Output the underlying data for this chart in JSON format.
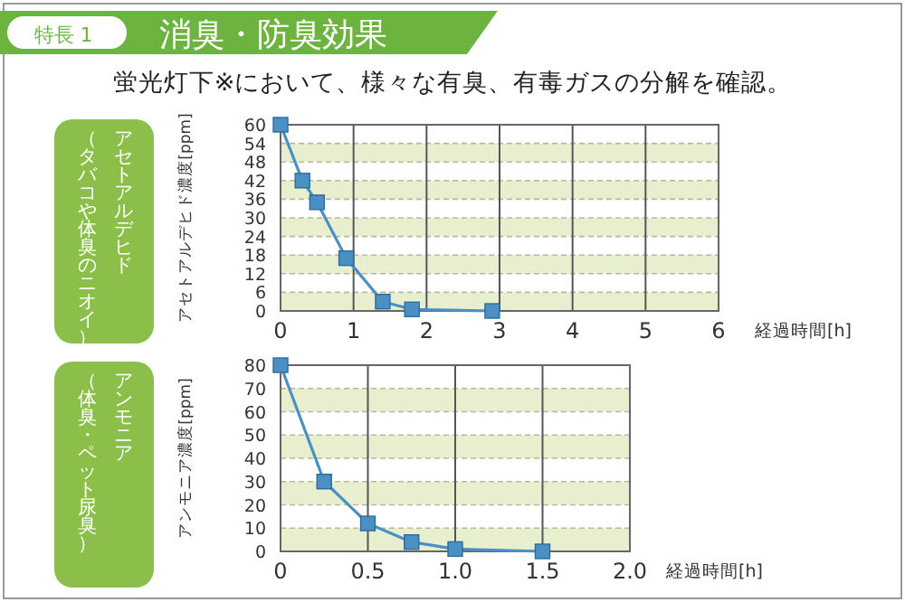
{
  "chart_data": [
    {
      "type": "line",
      "title": "消臭・防臭効果",
      "subtitle": "蛍光灯下※において、様々な有臭、有毒ガスの分解を確認。",
      "annotations": [
        "特長 1",
        "アセトアルデヒド",
        "（タバコや体臭のニオイ）"
      ],
      "xlabel": "経過時間[h]",
      "ylabel": "アセトアルデヒド濃度[ppm]",
      "series": [
        {
          "color": "#4a90c4",
          "x": [
            0,
            0.3,
            0.5,
            0.9,
            1.4,
            1.8,
            2.9
          ],
          "values": [
            60,
            42,
            35,
            17,
            3,
            0.5,
            0
          ]
        }
      ],
      "xlim": [
        0,
        6
      ],
      "xticks": [
        0,
        1,
        2,
        3,
        4,
        5,
        6
      ],
      "ylim": [
        0,
        60
      ],
      "yticks": [
        0,
        6,
        12,
        18,
        24,
        30,
        36,
        42,
        48,
        54,
        60
      ],
      "grid": true,
      "marker": "square",
      "line_style": "solid"
    },
    {
      "type": "line",
      "annotations": [
        "アンモニア",
        "（体臭・ペット尿臭）"
      ],
      "xlabel": "経過時間[h]",
      "ylabel": "アンモニア濃度[ppm]",
      "series": [
        {
          "color": "#4a90c4",
          "x": [
            0,
            0.25,
            0.5,
            0.75,
            1.0,
            1.5
          ],
          "values": [
            80,
            30,
            12,
            4,
            1,
            0
          ]
        }
      ],
      "xlim": [
        0,
        2
      ],
      "xticks": [
        {
          "value": 0,
          "label": "0"
        },
        {
          "value": 0.5,
          "label": "0.5"
        },
        {
          "value": 1,
          "label": "1.0"
        },
        {
          "value": 1.5,
          "label": "1.5"
        },
        {
          "value": 2,
          "label": "2.0"
        }
      ],
      "ylim": [
        0,
        80
      ],
      "yticks": [
        0,
        10,
        20,
        30,
        40,
        50,
        60,
        70,
        80
      ],
      "grid": true,
      "marker": "square",
      "line_style": "solid"
    }
  ]
}
